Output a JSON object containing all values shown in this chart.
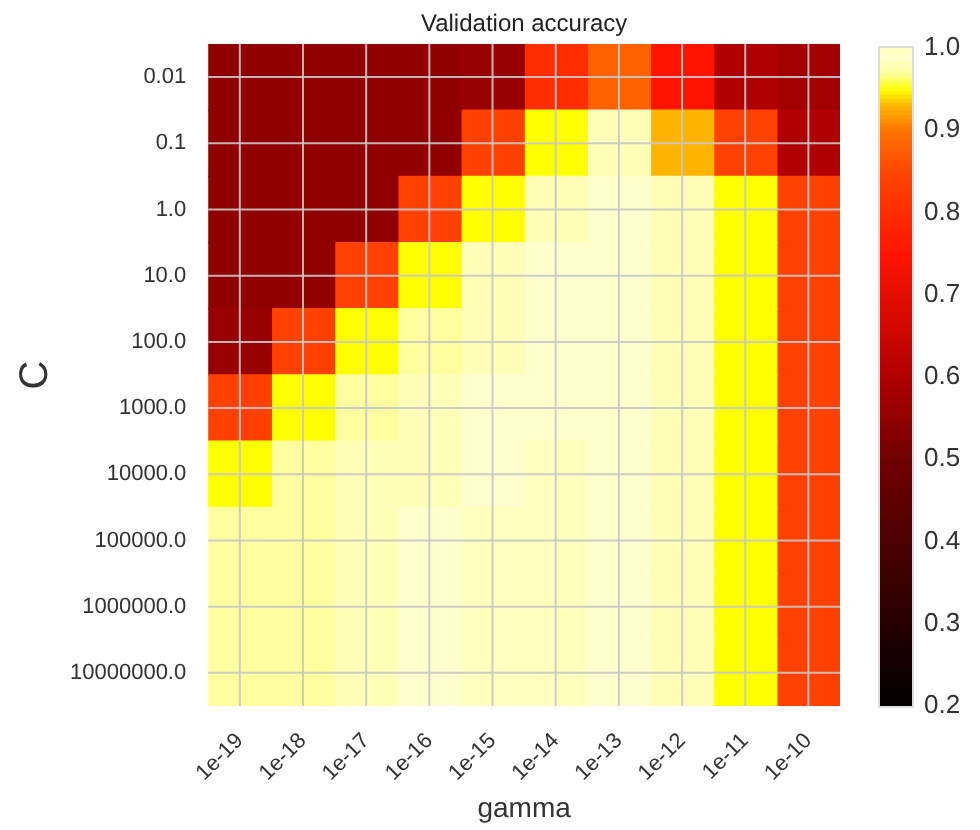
{
  "chart_data": {
    "type": "heatmap",
    "title": "Validation accuracy",
    "xlabel": "gamma",
    "ylabel": "C",
    "categories": [
      "1e-19",
      "1e-18",
      "1e-17",
      "1e-16",
      "1e-15",
      "1e-14",
      "1e-13",
      "1e-12",
      "1e-11",
      "1e-10"
    ],
    "y_categories": [
      "0.01",
      "0.1",
      "1.0",
      "10.0",
      "100.0",
      "1000.0",
      "10000.0",
      "100000.0",
      "1000000.0",
      "10000000.0"
    ],
    "cells": [
      [
        0.55,
        0.55,
        0.55,
        0.55,
        0.56,
        0.8,
        0.88,
        0.75,
        0.6,
        0.58
      ],
      [
        0.55,
        0.55,
        0.55,
        0.55,
        0.84,
        0.95,
        0.98,
        0.93,
        0.84,
        0.6
      ],
      [
        0.55,
        0.55,
        0.55,
        0.84,
        0.95,
        0.98,
        0.99,
        0.98,
        0.95,
        0.84
      ],
      [
        0.55,
        0.55,
        0.84,
        0.95,
        0.98,
        0.99,
        0.99,
        0.98,
        0.95,
        0.84
      ],
      [
        0.56,
        0.84,
        0.95,
        0.97,
        0.98,
        0.99,
        0.99,
        0.98,
        0.95,
        0.84
      ],
      [
        0.84,
        0.95,
        0.97,
        0.98,
        0.99,
        0.99,
        0.99,
        0.98,
        0.95,
        0.84
      ],
      [
        0.95,
        0.97,
        0.98,
        0.98,
        0.99,
        1.0,
        0.99,
        0.98,
        0.95,
        0.84
      ],
      [
        0.97,
        0.97,
        0.98,
        0.99,
        1.0,
        1.0,
        0.99,
        0.98,
        0.95,
        0.84
      ],
      [
        0.97,
        0.97,
        0.98,
        0.99,
        1.0,
        1.0,
        0.99,
        0.98,
        0.95,
        0.84
      ],
      [
        0.97,
        0.97,
        0.98,
        0.99,
        1.0,
        1.0,
        0.99,
        0.98,
        0.95,
        0.84
      ]
    ],
    "clim": [
      0.2,
      1.0
    ],
    "cticks": [
      0.2,
      0.3,
      0.4,
      0.5,
      0.6,
      0.7,
      0.8,
      0.9,
      {
        "value": 1.0,
        "label": "1.0"
      }
    ],
    "grid": true
  }
}
